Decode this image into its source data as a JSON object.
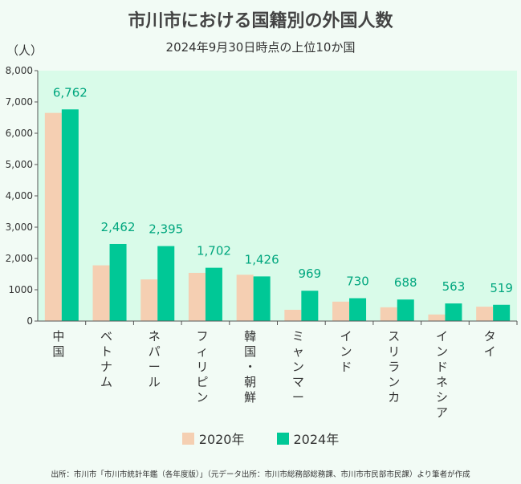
{
  "chart_data": {
    "type": "bar",
    "title": "市川市における国籍別の外国人数",
    "subtitle": "2024年9月30日時点の上位10か国",
    "ylabel": "（人）",
    "ylim": [
      0,
      8000
    ],
    "yticks": [
      0,
      1000,
      2000,
      3000,
      4000,
      5000,
      6000,
      7000,
      8000
    ],
    "ytick_labels": [
      "0",
      "1000",
      "2,000",
      "3,000",
      "4,000",
      "5,000",
      "6,000",
      "7,000",
      "8,000"
    ],
    "categories": [
      "中国",
      "ベトナム",
      "ネパール",
      "フィリピン",
      "韓国・朝鮮",
      "ミャンマー",
      "インド",
      "スリランカ",
      "インドネシア",
      "タイ"
    ],
    "series": [
      {
        "name": "2020年",
        "color": "#f5cfb2",
        "values": [
          6650,
          1780,
          1330,
          1540,
          1480,
          360,
          620,
          440,
          210,
          460
        ]
      },
      {
        "name": "2024年",
        "color": "#00c896",
        "values": [
          6762,
          2462,
          2395,
          1702,
          1426,
          969,
          730,
          688,
          563,
          519
        ]
      }
    ],
    "data_labels": [
      "6,762",
      "2,462",
      "2,395",
      "1,702",
      "1,426",
      "969",
      "730",
      "688",
      "563",
      "519"
    ],
    "data_label_color": "#00a67e",
    "plot_background": "#d9fbe9",
    "grid": false,
    "legend": "bottom"
  },
  "source": "出所：市川市「市川市統計年鑑（各年度版）」（元データ出所：市川市総務部総務課、市川市市民部市民課）より筆者が作成"
}
